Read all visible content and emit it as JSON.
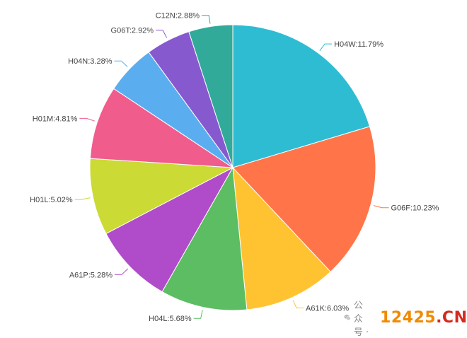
{
  "chart_data": {
    "type": "pie",
    "title": "",
    "slices": [
      {
        "name": "H04W",
        "label": "H04W:11.79%",
        "value": 11.79,
        "color": "#2EBCD3"
      },
      {
        "name": "G06F",
        "label": "G06F:10.23%",
        "value": 10.23,
        "color": "#FF7549"
      },
      {
        "name": "A61K",
        "label": "A61K:6.03%",
        "value": 6.03,
        "color": "#FFC332"
      },
      {
        "name": "H04L",
        "label": "H04L:5.68%",
        "value": 5.68,
        "color": "#5CBD63"
      },
      {
        "name": "A61P",
        "label": "A61P:5.28%",
        "value": 5.28,
        "color": "#B04CC9"
      },
      {
        "name": "H01L",
        "label": "H01L:5.02%",
        "value": 5.02,
        "color": "#CBDA34"
      },
      {
        "name": "H01M",
        "label": "H01M:4.81%",
        "value": 4.81,
        "color": "#F05C8C"
      },
      {
        "name": "H04N",
        "label": "H04N:3.28%",
        "value": 3.28,
        "color": "#5AAEF0"
      },
      {
        "name": "G06T",
        "label": "G06T:2.92%",
        "value": 2.92,
        "color": "#8759CF"
      },
      {
        "name": "C12N",
        "label": "C12N:2.88%",
        "value": 2.88,
        "color": "#32AA9A"
      }
    ]
  },
  "watermark": {
    "account_text": "公众号 · ",
    "site_number": "12425",
    "site_suffix": ".CN"
  }
}
